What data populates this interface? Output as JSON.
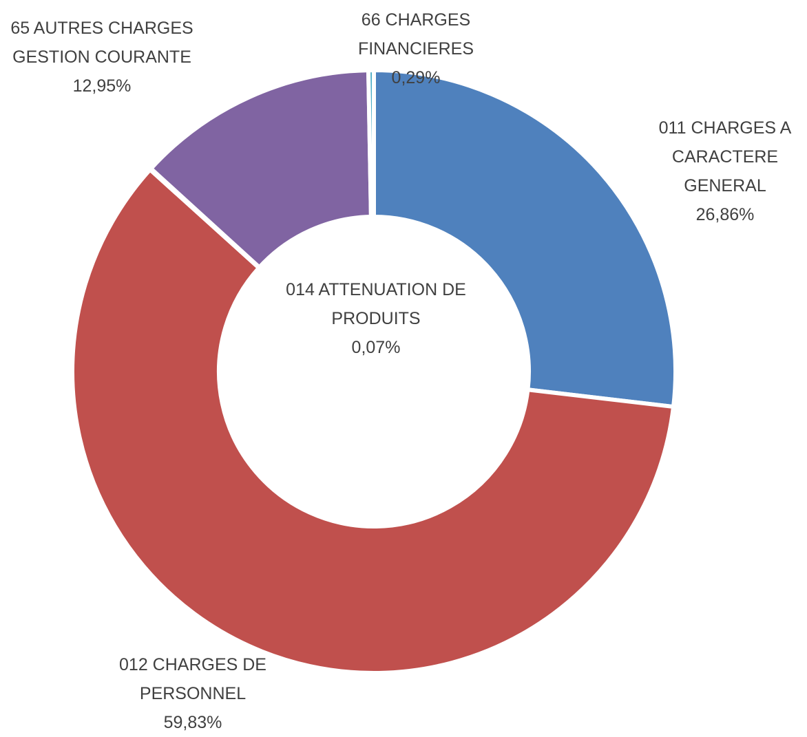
{
  "chart_data": {
    "type": "donut",
    "categories": [
      "011 CHARGES A CARACTERE GENERAL",
      "012 CHARGES DE PERSONNEL",
      "014 ATTENUATION DE PRODUITS",
      "65 AUTRES CHARGES GESTION COURANTE",
      "66 CHARGES FINANCIERES"
    ],
    "values": [
      26.86,
      59.83,
      0.07,
      12.95,
      0.29
    ],
    "value_labels": [
      "26,86%",
      "59,83%",
      "0,07%",
      "12,95%",
      "0,29%"
    ],
    "colors": [
      "#4f81bd",
      "#c0504d",
      "#9bbb59",
      "#8064a2",
      "#4bacc6"
    ]
  }
}
